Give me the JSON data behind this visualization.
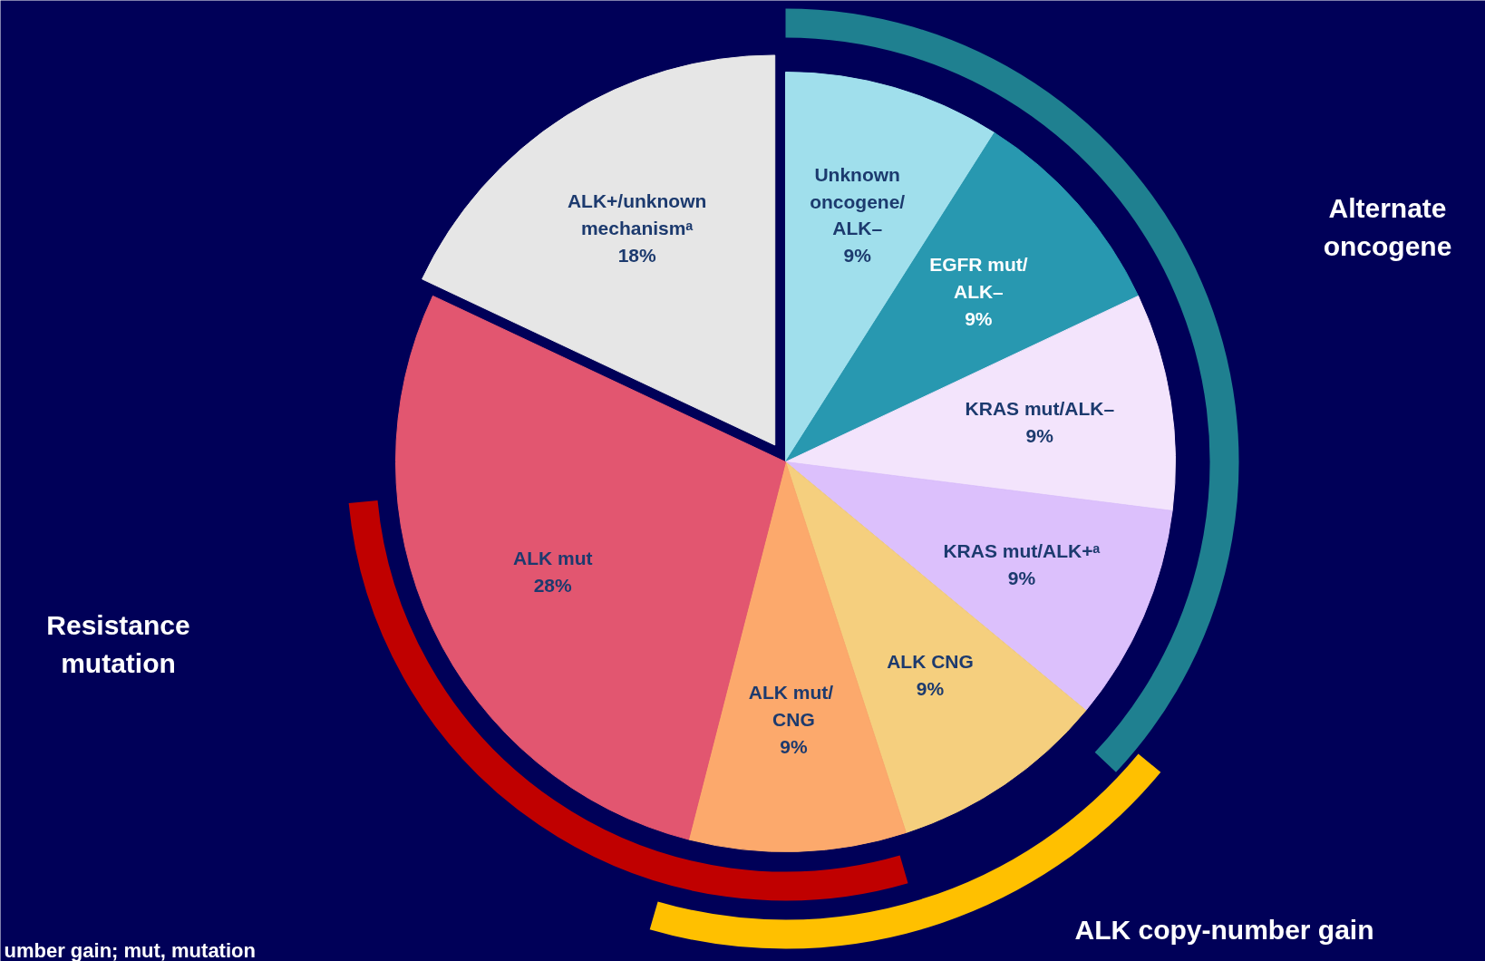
{
  "chart_data": {
    "type": "pie",
    "categories": [
      "Unknown\noncogene/\nALK–",
      "EGFR mut/\nALK–",
      "KRAS mut/ALK–",
      "KRAS mut/ALK+ᵃ",
      "ALK CNG",
      "ALK  mut/\nCNG",
      "ALK mut",
      "ALK+/unknown\nmechanismᵃ"
    ],
    "values": [
      9,
      9,
      9,
      9,
      9,
      9,
      28,
      18
    ],
    "colors": [
      "#a0dfec",
      "#2898b0",
      "#f3e4fc",
      "#dcc0fc",
      "#f5cf7e",
      "#fca96c",
      "#e25670",
      "#e6e6e6"
    ],
    "value_labels": [
      "9%",
      "9%",
      "9%",
      "9%",
      "9%",
      "9%",
      "28%",
      "18%"
    ],
    "annotations": [
      "Alternate\noncogene",
      "Resistance\nmutation",
      "ALK copy-number gain",
      "umber gain; mut, mutation"
    ]
  }
}
